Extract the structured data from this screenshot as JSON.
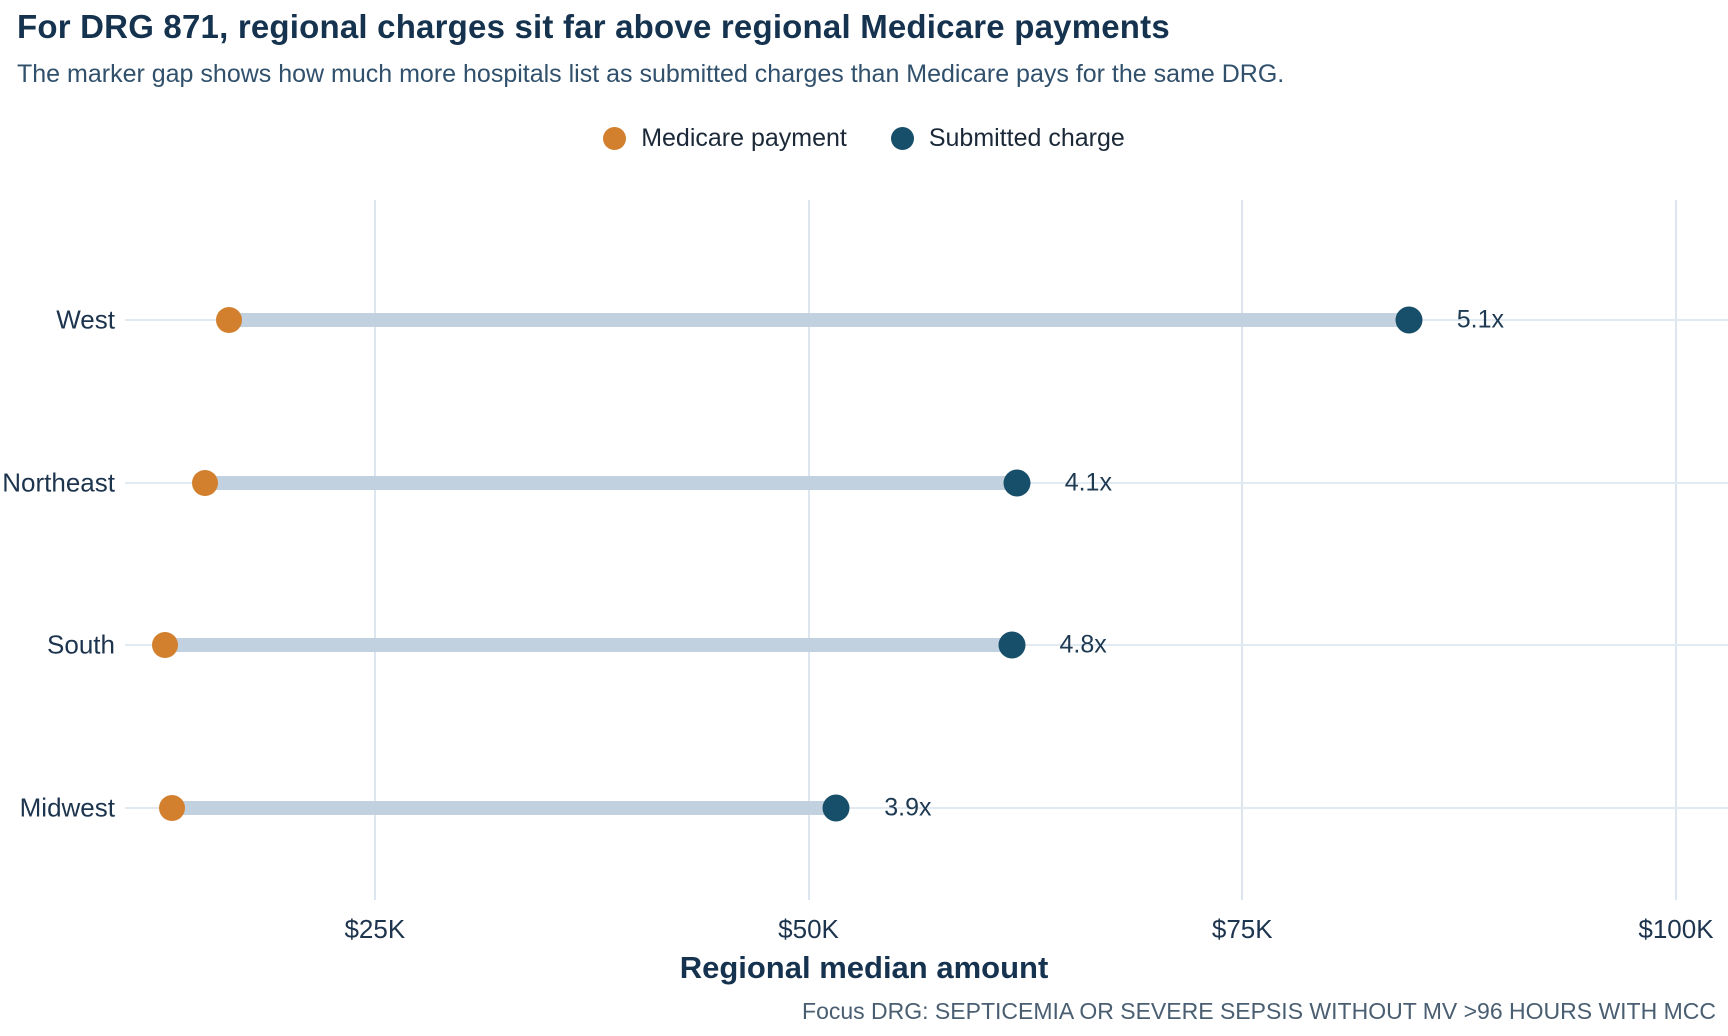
{
  "header": {
    "title": "For DRG 871, regional charges sit far above regional Medicare payments",
    "subtitle": "The marker gap shows how much more hospitals list as submitted charges than Medicare pays for the same DRG."
  },
  "legend": {
    "items": [
      {
        "label": "Medicare payment",
        "color": "#d2802e"
      },
      {
        "label": "Submitted charge",
        "color": "#174e69"
      }
    ]
  },
  "footer": {
    "note": "Focus DRG: SEPTICEMIA OR SEVERE SEPSIS WITHOUT MV >96 HOURS WITH MCC"
  },
  "colors": {
    "medicare_payment": "#d2802e",
    "submitted_charge": "#174e69",
    "stem": "#c2d1df",
    "row_gridline": "#e1e9f1",
    "vertical_gridline": "#dde5ef",
    "title_text": "#15324f",
    "annotation_text": "#1e3a52"
  },
  "chart_data": {
    "type": "dumbbell",
    "title": "For DRG 871, regional charges sit far above regional Medicare payments",
    "subtitle": "The marker gap shows how much more hospitals list as submitted charges than Medicare pays for the same DRG.",
    "categories": [
      "West",
      "Northeast",
      "South",
      "Midwest"
    ],
    "series": [
      {
        "name": "Medicare payment",
        "values": [
          16600,
          15200,
          12900,
          13300
        ]
      },
      {
        "name": "Submitted charge",
        "values": [
          84600,
          62000,
          61700,
          51600
        ]
      }
    ],
    "annotations": [
      "5.1x",
      "4.1x",
      "4.8x",
      "3.9x"
    ],
    "xlabel": "Regional median amount",
    "ylabel": "",
    "xlim": [
      10600,
      103000
    ],
    "x_ticks": [
      {
        "value": 25000,
        "label": "$25K"
      },
      {
        "value": 50000,
        "label": "$50K"
      },
      {
        "value": 75000,
        "label": "$75K"
      },
      {
        "value": 100000,
        "label": "$100K"
      }
    ],
    "grid": true,
    "legend_position": "top-center",
    "note": "Focus DRG: SEPTICEMIA OR SEVERE SEPSIS WITHOUT MV >96 HOURS WITH MCC"
  }
}
